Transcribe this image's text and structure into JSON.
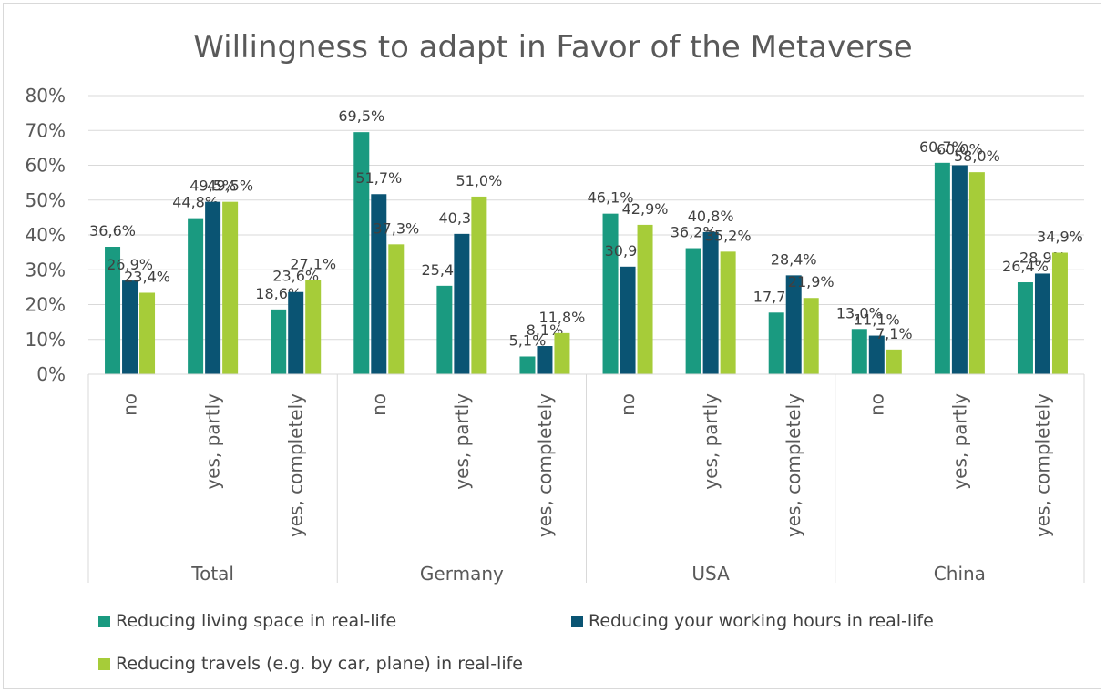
{
  "chart_data": {
    "type": "bar",
    "title": "Willingness to adapt in Favor of the Metaverse",
    "ylim": [
      0,
      80
    ],
    "y_ticks": [
      "0%",
      "10%",
      "20%",
      "30%",
      "40%",
      "50%",
      "60%",
      "70%",
      "80%"
    ],
    "groups": [
      {
        "name": "Total",
        "categories": [
          "no",
          "yes, partly",
          "yes, completely"
        ]
      },
      {
        "name": "Germany",
        "categories": [
          "no",
          "yes, partly",
          "yes, completely"
        ]
      },
      {
        "name": "USA",
        "categories": [
          "no",
          "yes, partly",
          "yes, completely"
        ]
      },
      {
        "name": "China",
        "categories": [
          "no",
          "yes, partly",
          "yes, completely"
        ]
      }
    ],
    "series": [
      {
        "name": "Reducing living space in real-life",
        "color": "#1a9a80",
        "values": [
          36.6,
          44.8,
          18.6,
          69.5,
          25.4,
          5.1,
          46.1,
          36.2,
          17.7,
          13.0,
          60.7,
          26.4
        ],
        "labels": [
          "36,6%",
          "44,8%",
          "18,6%",
          "69,5%",
          "25,4%",
          "5,1%",
          "46,1%",
          "36,2%",
          "17,7%",
          "13,0%",
          "60,7%",
          "26,4%"
        ]
      },
      {
        "name": "Reducing your working hours in real-life",
        "color": "#0a5473",
        "values": [
          26.9,
          49.5,
          23.6,
          51.7,
          40.3,
          8.1,
          30.9,
          40.8,
          28.4,
          11.1,
          60.0,
          28.9
        ],
        "labels": [
          "26,9%",
          "49,5%",
          "23,6%",
          "51,7%",
          "40,3%",
          "8,1%",
          "30,9%",
          "40,8%",
          "28,4%",
          "11,1%",
          "60,0%",
          "28,9%"
        ]
      },
      {
        "name": "Reducing travels (e.g. by car, plane) in real-life",
        "color": "#a6cc39",
        "values": [
          23.4,
          49.5,
          27.1,
          37.3,
          51.0,
          11.8,
          42.9,
          35.2,
          21.9,
          7.1,
          58.0,
          34.9
        ],
        "labels": [
          "23,4%",
          "49,5%",
          "27,1%",
          "37,3%",
          "51,0%",
          "11,8%",
          "42,9%",
          "35,2%",
          "21,9%",
          "7,1%",
          "58,0%",
          "34,9%"
        ]
      }
    ],
    "grid": true,
    "legend_position": "bottom"
  }
}
